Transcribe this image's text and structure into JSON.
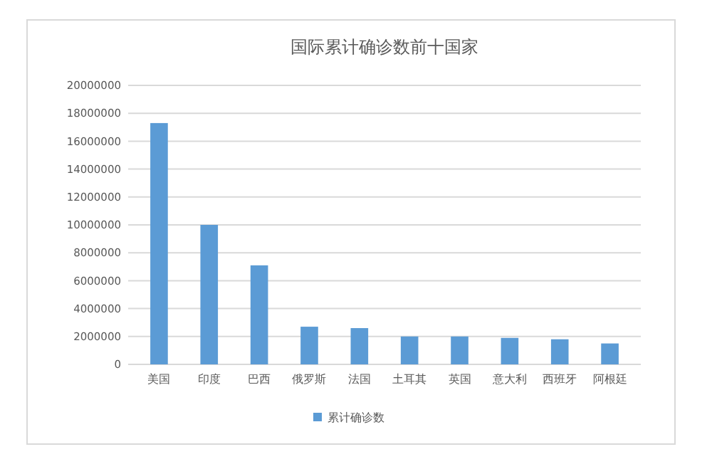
{
  "chart_data": {
    "type": "bar",
    "title": "国际累计确诊数前十国家",
    "categories": [
      "美国",
      "印度",
      "巴西",
      "俄罗斯",
      "法国",
      "土耳其",
      "英国",
      "意大利",
      "西班牙",
      "阿根廷"
    ],
    "series": [
      {
        "name": "累计确诊数",
        "color": "#5b9bd5",
        "values": [
          17300000,
          10000000,
          7100000,
          2700000,
          2600000,
          2000000,
          2000000,
          1900000,
          1800000,
          1500000
        ]
      }
    ],
    "ylim": [
      0,
      20000000
    ],
    "yticks": [
      0,
      2000000,
      4000000,
      6000000,
      8000000,
      10000000,
      12000000,
      14000000,
      16000000,
      18000000,
      20000000
    ],
    "grid": "y",
    "legend": "bottom"
  }
}
